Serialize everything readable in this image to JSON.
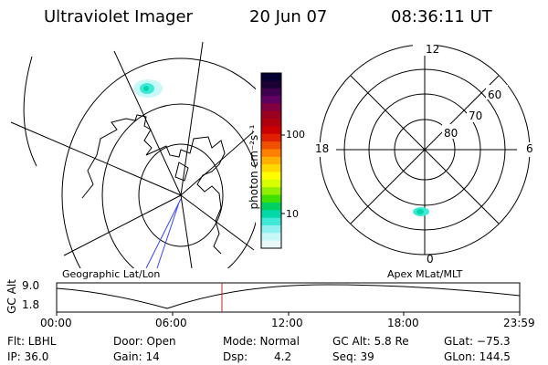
{
  "header": {
    "instrument": "Ultraviolet Imager",
    "date": "20 Jun 07",
    "time": "08:36:11 UT"
  },
  "colorbar": {
    "unit_label": "photon cm⁻²s⁻¹",
    "ticks": [
      "100",
      "10"
    ],
    "colors": [
      "#000033",
      "#1a0033",
      "#400050",
      "#600060",
      "#800040",
      "#9a0020",
      "#b00010",
      "#cc0000",
      "#e02000",
      "#f05000",
      "#ff8000",
      "#ffb000",
      "#ffd800",
      "#ffff00",
      "#d8ff00",
      "#90f000",
      "#40e000",
      "#00d060",
      "#00d8a8",
      "#40e8d8",
      "#90f0f0",
      "#c8f8f8",
      "#e8f8f8"
    ]
  },
  "left_map": {
    "caption": "Geographic Lat/Lon"
  },
  "right_map": {
    "caption": "Apex MLat/MLT",
    "mlt_labels": [
      "12",
      "18",
      "6",
      "0"
    ],
    "lat_labels": [
      "60",
      "70",
      "80"
    ]
  },
  "altitude_panel": {
    "ylabel": "GC Alt",
    "yticks": [
      "9.0",
      "1.8"
    ],
    "xticks": [
      "00:00",
      "06:00",
      "12:00",
      "18:00",
      "23:59"
    ],
    "marker_color": "#cc2222"
  },
  "footer": {
    "row1": {
      "filter": "Flt: LBHL",
      "door": "Door: Open",
      "mode": "Mode: Normal",
      "gc_alt": "GC Alt: 5.8 Re",
      "glat": "GLat: −75.3"
    },
    "row2": {
      "ip": "IP: 36.0",
      "gain": "Gain: 14",
      "dsp_label": "Dsp:",
      "dsp_value": "4.2",
      "seq": "Seq: 39",
      "glon": "GLon: 144.5"
    }
  }
}
